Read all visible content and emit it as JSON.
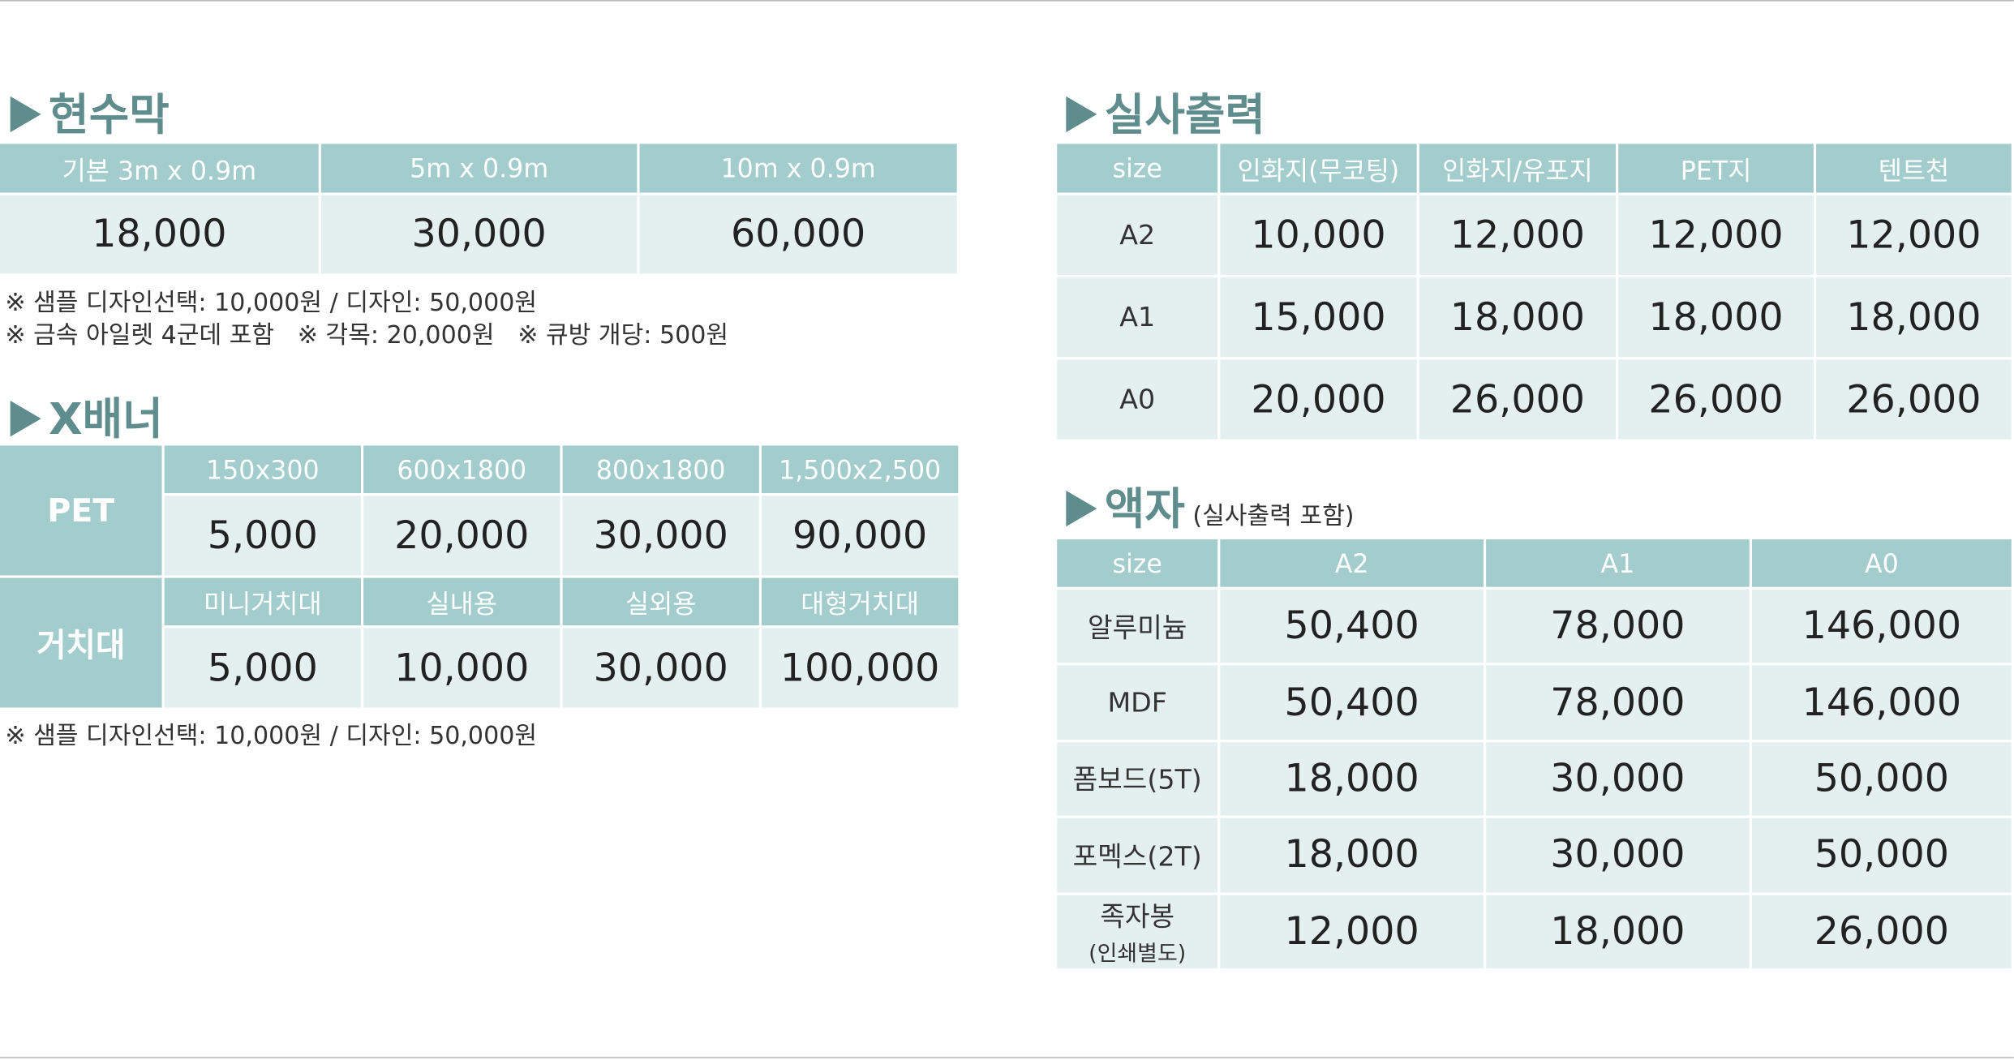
{
  "banner": {
    "title": "현수막",
    "headers": [
      "기본 3m x 0.9m",
      "5m x 0.9m",
      "10m x 0.9m"
    ],
    "prices": [
      "18,000",
      "30,000",
      "60,000"
    ],
    "notes": [
      "※ 샘플 디자인선택: 10,000원 / 디자인: 50,000원",
      "※ 금속 아일렛 4군데 포함   ※ 각목: 20,000원   ※ 큐방 개당: 500원"
    ]
  },
  "xbanner": {
    "title": "X배너",
    "groups": [
      {
        "label": "PET",
        "headers": [
          "150x300",
          "600x1800",
          "800x1800",
          "1,500x2,500"
        ],
        "prices": [
          "5,000",
          "20,000",
          "30,000",
          "90,000"
        ]
      },
      {
        "label": "거치대",
        "headers": [
          "미니거치대",
          "실내용",
          "실외용",
          "대형거치대"
        ],
        "prices": [
          "5,000",
          "10,000",
          "30,000",
          "100,000"
        ]
      }
    ],
    "note": "※ 샘플 디자인선택: 10,000원 / 디자인: 50,000원"
  },
  "print": {
    "title": "실사출력",
    "headers": [
      "size",
      "인화지(무코팅)",
      "인화지/유포지",
      "PET지",
      "텐트천"
    ],
    "rows": [
      {
        "label": "A2",
        "prices": [
          "10,000",
          "12,000",
          "12,000",
          "12,000"
        ]
      },
      {
        "label": "A1",
        "prices": [
          "15,000",
          "18,000",
          "18,000",
          "18,000"
        ]
      },
      {
        "label": "A0",
        "prices": [
          "20,000",
          "26,000",
          "26,000",
          "26,000"
        ]
      }
    ]
  },
  "frame": {
    "title": "액자",
    "subtitle": "(실사출력 포함)",
    "headers": [
      "size",
      "A2",
      "A1",
      "A0"
    ],
    "rows": [
      {
        "label": "알루미늄",
        "prices": [
          "50,400",
          "78,000",
          "146,000"
        ]
      },
      {
        "label": "MDF",
        "prices": [
          "50,400",
          "78,000",
          "146,000"
        ]
      },
      {
        "label": "폼보드(5T)",
        "prices": [
          "18,000",
          "30,000",
          "50,000"
        ]
      },
      {
        "label": "포멕스(2T)",
        "prices": [
          "18,000",
          "30,000",
          "50,000"
        ]
      },
      {
        "label": "족자봉",
        "note": "(인쇄별도)",
        "prices": [
          "12,000",
          "18,000",
          "26,000"
        ]
      }
    ]
  }
}
